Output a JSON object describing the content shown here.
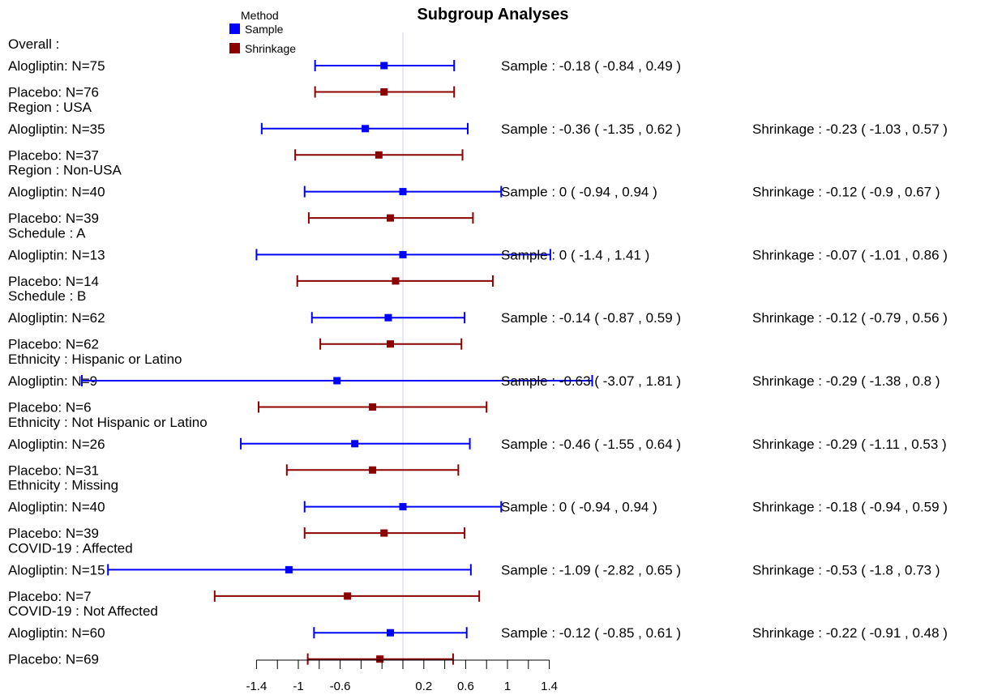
{
  "chart_data": {
    "type": "forest",
    "title": "Subgroup Analyses",
    "legend": {
      "title": "Method",
      "placement": "top-left",
      "entries": [
        {
          "name": "Sample",
          "color": "#0000FF"
        },
        {
          "name": "Shrinkage",
          "color": "#8B0000"
        }
      ]
    },
    "colors": {
      "sample": "#0000FF",
      "shrinkage": "#8B0000",
      "ref_line": "#D8D8EE"
    },
    "x_range": [
      -2.5,
      1.7
    ],
    "x_ticks": [
      -1.4,
      -1.2,
      -1,
      -0.8,
      -0.6,
      -0.4,
      -0.2,
      0,
      0.2,
      0.4,
      0.6,
      0.8,
      1,
      1.2,
      1.4
    ],
    "x_tick_labels": [
      {
        "value": -1.4,
        "label": "-1.4"
      },
      {
        "value": -1,
        "label": "-1"
      },
      {
        "value": -0.6,
        "label": "-0.6"
      },
      {
        "value": 0.2,
        "label": "0.2"
      },
      {
        "value": 0.6,
        "label": "0.6"
      },
      {
        "value": 1,
        "label": "1"
      },
      {
        "value": 1.4,
        "label": "1.4"
      }
    ],
    "subgroups": [
      {
        "header": "Overall :",
        "arms": [
          "Alogliptin: N=75",
          "Placebo: N=76"
        ],
        "sample": {
          "est": -0.18,
          "lo": -0.84,
          "hi": 0.49,
          "text": "Sample :  -0.18  ( -0.84 ,  0.49 )"
        },
        "shrinkage": {
          "est": -0.18,
          "lo": -0.84,
          "hi": 0.49,
          "text": ""
        }
      },
      {
        "header": "Region :  USA",
        "arms": [
          "Alogliptin: N=35",
          "Placebo: N=37"
        ],
        "sample": {
          "est": -0.36,
          "lo": -1.35,
          "hi": 0.62,
          "text": "Sample :  -0.36  ( -1.35 ,  0.62 )"
        },
        "shrinkage": {
          "est": -0.23,
          "lo": -1.03,
          "hi": 0.57,
          "text": "Shrinkage :  -0.23  ( -1.03 ,  0.57 )"
        }
      },
      {
        "header": "Region :  Non-USA",
        "arms": [
          "Alogliptin: N=40",
          "Placebo: N=39"
        ],
        "sample": {
          "est": 0,
          "lo": -0.94,
          "hi": 0.94,
          "text": "Sample :  0  ( -0.94 ,  0.94 )"
        },
        "shrinkage": {
          "est": -0.12,
          "lo": -0.9,
          "hi": 0.67,
          "text": "Shrinkage :  -0.12  ( -0.9 ,  0.67 )"
        }
      },
      {
        "header": "Schedule :  A",
        "arms": [
          "Alogliptin: N=13",
          "Placebo: N=14"
        ],
        "sample": {
          "est": 0,
          "lo": -1.4,
          "hi": 1.41,
          "text": "Sample :  0  ( -1.4 ,  1.41 )"
        },
        "shrinkage": {
          "est": -0.07,
          "lo": -1.01,
          "hi": 0.86,
          "text": "Shrinkage :  -0.07  ( -1.01 ,  0.86 )"
        }
      },
      {
        "header": "Schedule :  B",
        "arms": [
          "Alogliptin: N=62",
          "Placebo: N=62"
        ],
        "sample": {
          "est": -0.14,
          "lo": -0.87,
          "hi": 0.59,
          "text": "Sample :  -0.14  ( -0.87 ,  0.59 )"
        },
        "shrinkage": {
          "est": -0.12,
          "lo": -0.79,
          "hi": 0.56,
          "text": "Shrinkage :  -0.12  ( -0.79 ,  0.56 )"
        }
      },
      {
        "header": "Ethnicity :  Hispanic or Latino",
        "arms": [
          "Alogliptin: N=9",
          "Placebo: N=6"
        ],
        "sample": {
          "est": -0.63,
          "lo": -3.07,
          "hi": 1.81,
          "text": "Sample :  -0.63  ( -3.07 ,  1.81 )"
        },
        "shrinkage": {
          "est": -0.29,
          "lo": -1.38,
          "hi": 0.8,
          "text": "Shrinkage :  -0.29  ( -1.38 ,  0.8 )"
        }
      },
      {
        "header": "Ethnicity :  Not Hispanic or Latino",
        "arms": [
          "Alogliptin: N=26",
          "Placebo: N=31"
        ],
        "sample": {
          "est": -0.46,
          "lo": -1.55,
          "hi": 0.64,
          "text": "Sample :  -0.46  ( -1.55 ,  0.64 )"
        },
        "shrinkage": {
          "est": -0.29,
          "lo": -1.11,
          "hi": 0.53,
          "text": "Shrinkage :  -0.29  ( -1.11 ,  0.53 )"
        }
      },
      {
        "header": "Ethnicity :  Missing",
        "arms": [
          "Alogliptin: N=40",
          "Placebo: N=39"
        ],
        "sample": {
          "est": 0,
          "lo": -0.94,
          "hi": 0.94,
          "text": "Sample :  0  ( -0.94 ,  0.94 )"
        },
        "shrinkage": {
          "est": -0.18,
          "lo": -0.94,
          "hi": 0.59,
          "text": "Shrinkage :  -0.18  ( -0.94 ,  0.59 )"
        }
      },
      {
        "header": "COVID-19 :  Affected",
        "arms": [
          "Alogliptin: N=15",
          "Placebo: N=7"
        ],
        "sample": {
          "est": -1.09,
          "lo": -2.82,
          "hi": 0.65,
          "text": "Sample :  -1.09  ( -2.82 ,  0.65 )"
        },
        "shrinkage": {
          "est": -0.53,
          "lo": -1.8,
          "hi": 0.73,
          "text": "Shrinkage :  -0.53  ( -1.8 ,  0.73 )"
        }
      },
      {
        "header": "COVID-19 :  Not Affected",
        "arms": [
          "Alogliptin: N=60",
          "Placebo: N=69"
        ],
        "sample": {
          "est": -0.12,
          "lo": -0.85,
          "hi": 0.61,
          "text": "Sample :  -0.12  ( -0.85 ,  0.61 )"
        },
        "shrinkage": {
          "est": -0.22,
          "lo": -0.91,
          "hi": 0.48,
          "text": "Shrinkage :  -0.22  ( -0.91 ,  0.48 )"
        }
      }
    ]
  }
}
